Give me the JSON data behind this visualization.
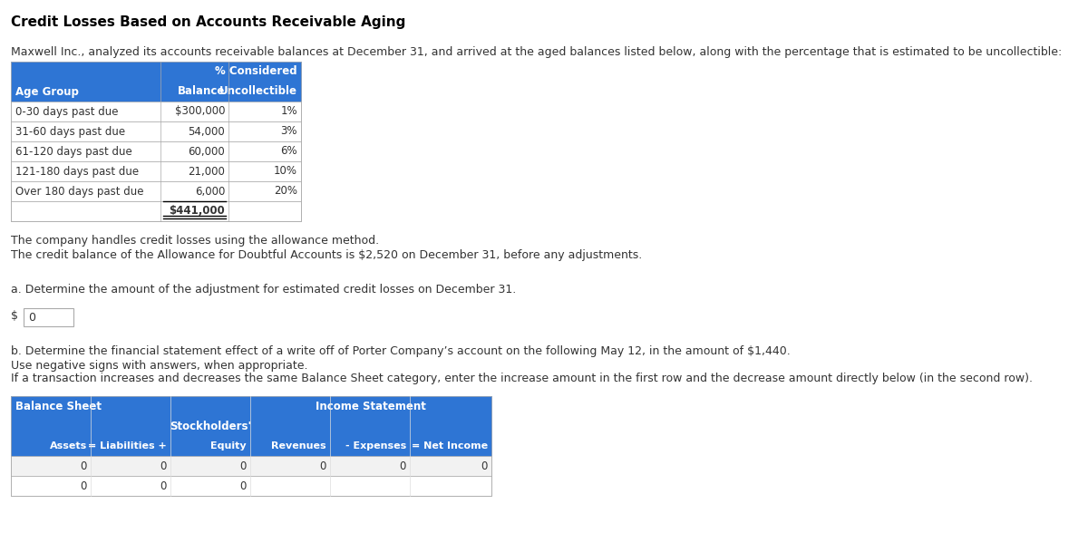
{
  "title": "Credit Losses Based on Accounts Receivable Aging",
  "intro_text": "Maxwell Inc., analyzed its accounts receivable balances at December 31, and arrived at the aged balances listed below, along with the percentage that is estimated to be uncollectible:",
  "table1_col_headers_r1": [
    "",
    "",
    "% Considered"
  ],
  "table1_col_headers_r2": [
    "Age Group",
    "Balance",
    "Uncollectible"
  ],
  "table1_rows": [
    [
      "0-30 days past due",
      "$300,000",
      "1%"
    ],
    [
      "31-60 days past due",
      "54,000",
      "3%"
    ],
    [
      "61-120 days past due",
      "60,000",
      "6%"
    ],
    [
      "121-180 days past due",
      "21,000",
      "10%"
    ],
    [
      "Over 180 days past due",
      "6,000",
      "20%"
    ],
    [
      "",
      "$441,000",
      ""
    ]
  ],
  "note1": "The company handles credit losses using the allowance method.",
  "note2": "The credit balance of the Allowance for Doubtful Accounts is $2,520 on December 31, before any adjustments.",
  "part_a_label": "a. Determine the amount of the adjustment for estimated credit losses on December 31.",
  "part_a_value": "0",
  "part_b_label": "b. Determine the financial statement effect of a write off of Porter Company’s account on the following May 12, in the amount of $1,440.",
  "part_b_note1": "Use negative signs with answers, when appropriate.",
  "part_b_note2": "If a transaction increases and decreases the same Balance Sheet category, enter the increase amount in the first row and the decrease amount directly below (in the second row).",
  "table2_row1": [
    "0",
    "0",
    "0",
    "0",
    "0",
    "0"
  ],
  "table2_row2": [
    "0",
    "0",
    "0",
    "",
    "",
    ""
  ],
  "header_bg": "#2E75D4",
  "header_fg": "#FFFFFF",
  "border_color": "#AAAAAA",
  "row_bg1": "#F2F2F2",
  "row_bg2": "#FFFFFF",
  "bg_color": "#FFFFFF",
  "text_color": "#333333",
  "title_fontsize": 11,
  "body_fontsize": 9,
  "table_fontsize": 8.5
}
